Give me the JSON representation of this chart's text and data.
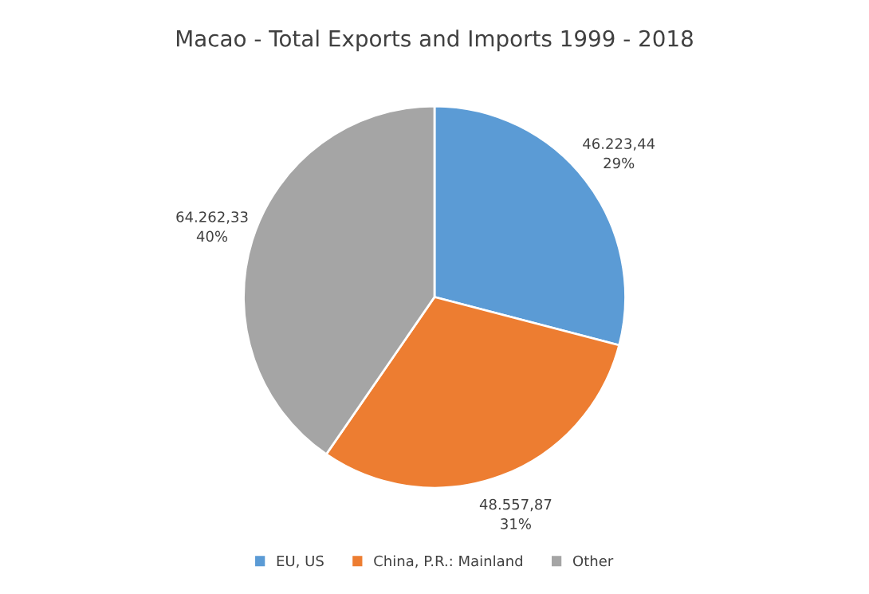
{
  "chart_data": {
    "type": "pie",
    "title": "Macao - Total Exports and Imports 1999 - 2018",
    "categories": [
      "EU, US",
      "China, P.R.: Mainland",
      "Other"
    ],
    "values": [
      46223.44,
      48557.87,
      64262.33
    ],
    "colors": [
      "#5b9bd5",
      "#ed7d31",
      "#a5a5a5"
    ],
    "value_labels": [
      "46.223,44\n29%",
      "48.557,87\n31%",
      "64.262,33\n40%"
    ],
    "legend": "bottom"
  }
}
